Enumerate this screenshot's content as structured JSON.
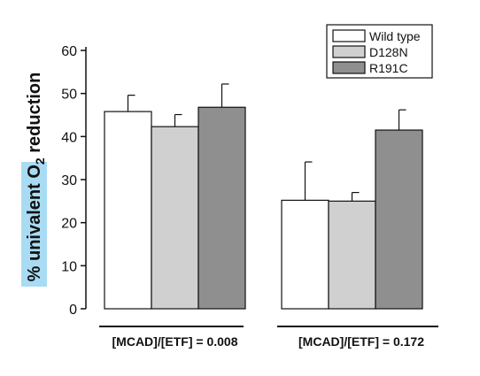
{
  "chart_data": {
    "type": "bar",
    "categories": [
      "[MCAD]/[ETF] = 0.008",
      "[MCAD]/[ETF] = 0.172"
    ],
    "series": [
      {
        "name": "Wild type",
        "values": [
          45.8,
          25.2
        ],
        "errors": [
          3.8,
          8.9
        ],
        "color": "#ffffff"
      },
      {
        "name": "D128N",
        "values": [
          42.3,
          25.0
        ],
        "errors": [
          2.8,
          2.0
        ],
        "color": "#d0d0d0"
      },
      {
        "name": "R191C",
        "values": [
          46.8,
          41.5
        ],
        "errors": [
          5.4,
          4.7
        ],
        "color": "#8f8f90"
      }
    ],
    "ylabel_prefix": "% univalent O",
    "ylabel_subscript": "2",
    "ylabel_suffix": " reduction",
    "ylabel_highlight_color": "#a9dcf3",
    "ylim": [
      0,
      60
    ],
    "yticks": [
      "0",
      "10",
      "20",
      "30",
      "40",
      "50",
      "60"
    ],
    "legend_position": "top-right",
    "grid": false
  }
}
